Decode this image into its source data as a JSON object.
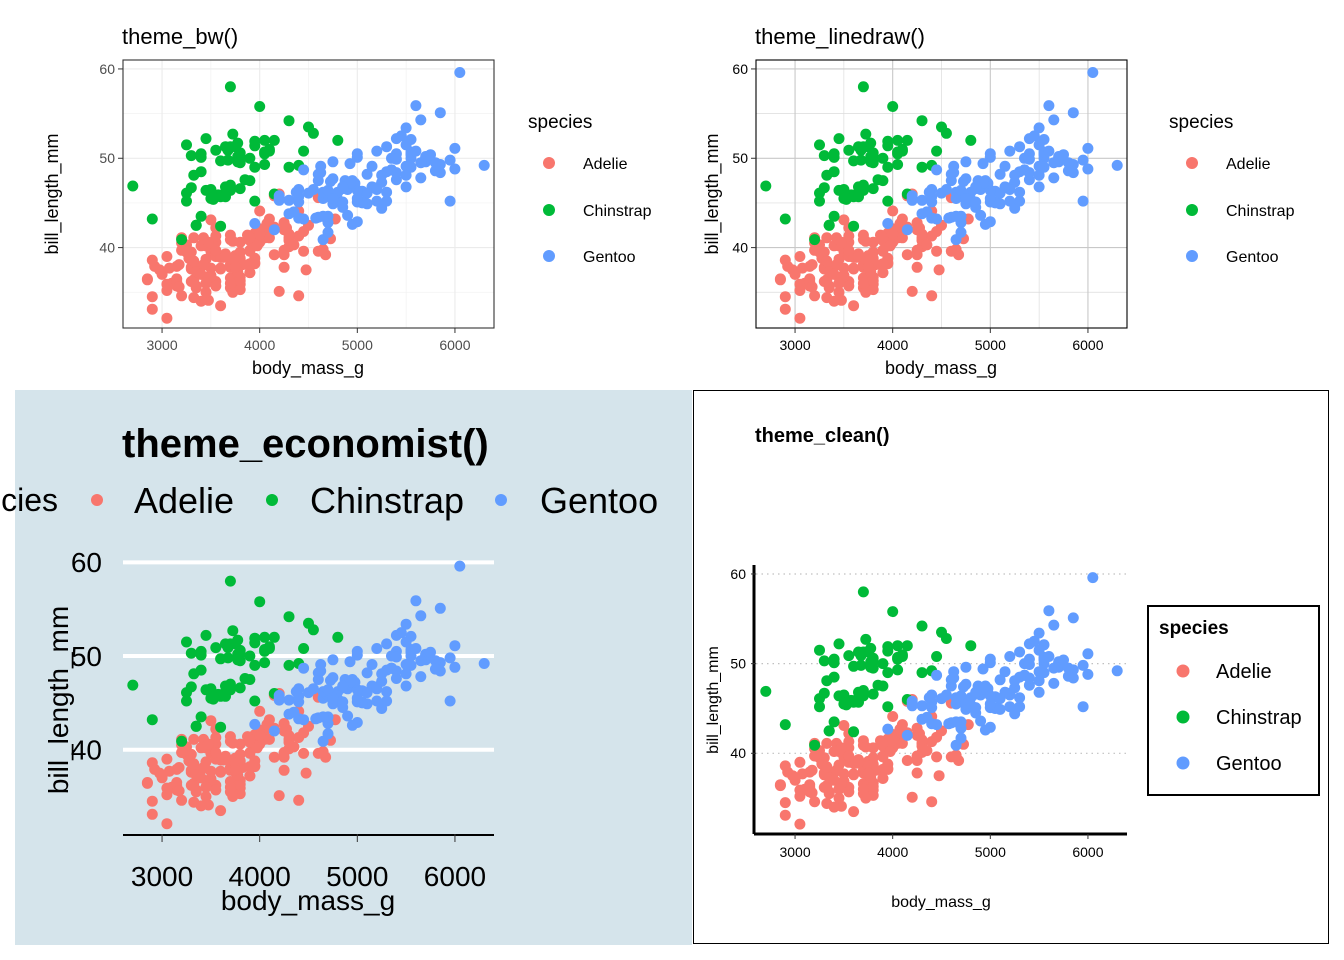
{
  "chart_data": [
    {
      "type": "scatter",
      "theme": "bw",
      "title": "theme_bw()",
      "xlabel": "body_mass_g",
      "ylabel": "bill_length_mm",
      "xlim": [
        2600,
        6400
      ],
      "ylim": [
        31,
        61
      ],
      "xticks": [
        "3000",
        "4000",
        "5000",
        "6000"
      ],
      "yticks": [
        "40",
        "50",
        "60"
      ],
      "grid": true,
      "legend_position": "right",
      "legend_title": "species",
      "series": [
        {
          "name": "Adelie",
          "color": "#F8766D"
        },
        {
          "name": "Chinstrap",
          "color": "#00BA38"
        },
        {
          "name": "Gentoo",
          "color": "#619CFF"
        }
      ]
    },
    {
      "type": "scatter",
      "theme": "linedraw",
      "title": "theme_linedraw()",
      "xlabel": "body_mass_g",
      "ylabel": "bill_length_mm",
      "xlim": [
        2600,
        6400
      ],
      "ylim": [
        31,
        61
      ],
      "xticks": [
        "3000",
        "4000",
        "5000",
        "6000"
      ],
      "yticks": [
        "40",
        "50",
        "60"
      ],
      "grid": true,
      "legend_position": "right",
      "legend_title": "species",
      "series": [
        {
          "name": "Adelie",
          "color": "#F8766D"
        },
        {
          "name": "Chinstrap",
          "color": "#00BA38"
        },
        {
          "name": "Gentoo",
          "color": "#619CFF"
        }
      ]
    },
    {
      "type": "scatter",
      "theme": "economist",
      "title": "theme_economist()",
      "xlabel": "body_mass_g",
      "ylabel": "bill_length_mm",
      "xlim": [
        2600,
        6400
      ],
      "ylim": [
        31,
        61
      ],
      "xticks": [
        "3000",
        "4000",
        "5000",
        "6000"
      ],
      "yticks": [
        "40",
        "50",
        "60"
      ],
      "grid": true,
      "legend_position": "top",
      "legend_title": "species",
      "background": "#D5E4EB",
      "series": [
        {
          "name": "Adelie",
          "color": "#F8766D"
        },
        {
          "name": "Chinstrap",
          "color": "#00BA38"
        },
        {
          "name": "Gentoo",
          "color": "#619CFF"
        }
      ]
    },
    {
      "type": "scatter",
      "theme": "clean",
      "title": "theme_clean()",
      "xlabel": "body_mass_g",
      "ylabel": "bill_length_mm",
      "xlim": [
        2600,
        6400
      ],
      "ylim": [
        31,
        61
      ],
      "xticks": [
        "3000",
        "4000",
        "5000",
        "6000"
      ],
      "yticks": [
        "40",
        "50",
        "60"
      ],
      "grid": "horizontal dotted",
      "legend_position": "right",
      "legend_title": "species",
      "series": [
        {
          "name": "Adelie",
          "color": "#F8766D"
        },
        {
          "name": "Chinstrap",
          "color": "#00BA38"
        },
        {
          "name": "Gentoo",
          "color": "#619CFF"
        }
      ]
    }
  ],
  "points": {
    "Adelie": [
      [
        3750,
        39.1
      ],
      [
        3800,
        39.5
      ],
      [
        3250,
        40.3
      ],
      [
        3450,
        36.7
      ],
      [
        3650,
        39.3
      ],
      [
        3625,
        38.9
      ],
      [
        4675,
        39.2
      ],
      [
        3475,
        34.1
      ],
      [
        4250,
        42.0
      ],
      [
        3300,
        37.8
      ],
      [
        3700,
        37.8
      ],
      [
        3200,
        41.1
      ],
      [
        3800,
        38.6
      ],
      [
        4400,
        34.6
      ],
      [
        3700,
        36.6
      ],
      [
        3450,
        38.7
      ],
      [
        4500,
        42.5
      ],
      [
        3325,
        34.4
      ],
      [
        4200,
        46.0
      ],
      [
        3400,
        37.8
      ],
      [
        3600,
        37.7
      ],
      [
        3800,
        35.9
      ],
      [
        3950,
        38.2
      ],
      [
        3800,
        38.8
      ],
      [
        3800,
        35.3
      ],
      [
        3550,
        40.6
      ],
      [
        3200,
        40.5
      ],
      [
        3150,
        37.9
      ],
      [
        3950,
        40.5
      ],
      [
        3250,
        39.5
      ],
      [
        3900,
        37.2
      ],
      [
        3300,
        39.5
      ],
      [
        3900,
        40.9
      ],
      [
        3325,
        36.4
      ],
      [
        4150,
        39.2
      ],
      [
        3950,
        38.8
      ],
      [
        3550,
        42.2
      ],
      [
        3300,
        37.6
      ],
      [
        4650,
        39.8
      ],
      [
        3150,
        36.5
      ],
      [
        3900,
        40.8
      ],
      [
        3100,
        36.0
      ],
      [
        4400,
        44.1
      ],
      [
        3000,
        37.0
      ],
      [
        4600,
        39.6
      ],
      [
        3425,
        41.1
      ],
      [
        2975,
        37.5
      ],
      [
        3450,
        36.0
      ],
      [
        4150,
        42.3
      ],
      [
        3500,
        39.6
      ],
      [
        4300,
        40.1
      ],
      [
        3450,
        35.0
      ],
      [
        4050,
        42.0
      ],
      [
        2900,
        34.5
      ],
      [
        3700,
        41.4
      ],
      [
        3550,
        39.0
      ],
      [
        3800,
        40.6
      ],
      [
        2850,
        36.5
      ],
      [
        3750,
        37.6
      ],
      [
        3150,
        35.7
      ],
      [
        4400,
        41.3
      ],
      [
        3600,
        37.6
      ],
      [
        4050,
        41.1
      ],
      [
        2850,
        36.4
      ],
      [
        3950,
        41.6
      ],
      [
        3350,
        35.5
      ],
      [
        4100,
        41.1
      ],
      [
        3050,
        35.9
      ],
      [
        4450,
        41.8
      ],
      [
        3600,
        33.5
      ],
      [
        3900,
        39.7
      ],
      [
        3550,
        39.6
      ],
      [
        4150,
        45.8
      ],
      [
        3700,
        35.5
      ],
      [
        4250,
        42.8
      ],
      [
        3700,
        40.9
      ],
      [
        3900,
        37.2
      ],
      [
        3550,
        36.2
      ],
      [
        4000,
        42.1
      ],
      [
        3200,
        34.6
      ],
      [
        4700,
        42.9
      ],
      [
        3800,
        36.7
      ],
      [
        4200,
        35.1
      ],
      [
        3350,
        37.3
      ],
      [
        3550,
        41.3
      ],
      [
        3800,
        36.3
      ],
      [
        3500,
        36.9
      ],
      [
        3950,
        38.3
      ],
      [
        3600,
        38.9
      ],
      [
        3550,
        35.7
      ],
      [
        4300,
        41.1
      ],
      [
        3400,
        34.0
      ],
      [
        4450,
        39.6
      ],
      [
        3300,
        36.2
      ],
      [
        4300,
        40.8
      ],
      [
        3700,
        38.1
      ],
      [
        4350,
        40.3
      ],
      [
        2900,
        33.1
      ],
      [
        4100,
        43.2
      ],
      [
        3725,
        35.0
      ],
      [
        4725,
        41.0
      ],
      [
        3075,
        37.7
      ],
      [
        4250,
        37.8
      ],
      [
        2925,
        37.9
      ],
      [
        3550,
        39.7
      ],
      [
        3750,
        38.6
      ],
      [
        3900,
        38.2
      ],
      [
        3175,
        38.1
      ],
      [
        4775,
        43.2
      ],
      [
        3825,
        38.1
      ],
      [
        4600,
        45.6
      ],
      [
        3200,
        39.7
      ],
      [
        4275,
        42.2
      ],
      [
        3900,
        39.6
      ],
      [
        4075,
        42.7
      ],
      [
        2900,
        38.6
      ],
      [
        3775,
        37.3
      ],
      [
        3350,
        35.7
      ],
      [
        3325,
        41.1
      ],
      [
        3150,
        36.2
      ],
      [
        3500,
        37.7
      ],
      [
        3450,
        40.2
      ],
      [
        3875,
        41.4
      ],
      [
        3050,
        35.2
      ],
      [
        4000,
        40.6
      ],
      [
        3275,
        38.8
      ],
      [
        4300,
        41.5
      ],
      [
        3050,
        39.0
      ],
      [
        4000,
        44.1
      ],
      [
        3325,
        38.5
      ],
      [
        3500,
        43.1
      ],
      [
        3500,
        36.8
      ],
      [
        4475,
        37.5
      ],
      [
        3425,
        38.1
      ],
      [
        3900,
        41.1
      ],
      [
        3175,
        35.6
      ],
      [
        3975,
        40.2
      ],
      [
        3400,
        37.0
      ],
      [
        4250,
        39.7
      ],
      [
        3400,
        40.2
      ],
      [
        3475,
        40.6
      ],
      [
        3050,
        32.1
      ],
      [
        3725,
        40.7
      ],
      [
        3000,
        37.3
      ],
      [
        3650,
        39.0
      ],
      [
        4250,
        39.2
      ],
      [
        3475,
        36.6
      ],
      [
        3450,
        36.0
      ],
      [
        3750,
        37.8
      ],
      [
        3700,
        36.0
      ],
      [
        4000,
        41.5
      ]
    ],
    "Chinstrap": [
      [
        3500,
        46.5
      ],
      [
        3900,
        50.0
      ],
      [
        3650,
        51.3
      ],
      [
        3525,
        45.4
      ],
      [
        3725,
        52.7
      ],
      [
        3950,
        45.2
      ],
      [
        3250,
        46.1
      ],
      [
        3750,
        51.3
      ],
      [
        4150,
        46.0
      ],
      [
        3700,
        51.3
      ],
      [
        3800,
        46.6
      ],
      [
        3775,
        51.7
      ],
      [
        3700,
        47.0
      ],
      [
        4050,
        52.0
      ],
      [
        3575,
        45.9
      ],
      [
        4050,
        50.5
      ],
      [
        3300,
        50.3
      ],
      [
        3700,
        58.0
      ],
      [
        3450,
        46.4
      ],
      [
        4400,
        49.2
      ],
      [
        3600,
        42.4
      ],
      [
        3400,
        48.5
      ],
      [
        2900,
        43.2
      ],
      [
        3800,
        50.6
      ],
      [
        3300,
        46.7
      ],
      [
        4150,
        52.0
      ],
      [
        3400,
        50.5
      ],
      [
        3800,
        49.5
      ],
      [
        3700,
        46.4
      ],
      [
        4550,
        52.8
      ],
      [
        3200,
        40.9
      ],
      [
        4300,
        54.2
      ],
      [
        3350,
        42.5
      ],
      [
        4100,
        51.0
      ],
      [
        3600,
        49.7
      ],
      [
        3900,
        47.5
      ],
      [
        3850,
        47.6
      ],
      [
        4800,
        52.0
      ],
      [
        2700,
        46.9
      ],
      [
        4500,
        53.5
      ],
      [
        3950,
        49.0
      ],
      [
        3650,
        46.2
      ],
      [
        3550,
        50.9
      ],
      [
        3500,
        45.5
      ],
      [
        3675,
        50.9
      ],
      [
        4450,
        50.8
      ],
      [
        3400,
        50.1
      ],
      [
        4300,
        49.0
      ],
      [
        3250,
        51.5
      ],
      [
        3675,
        49.8
      ],
      [
        3325,
        48.1
      ],
      [
        3950,
        51.4
      ],
      [
        3600,
        45.7
      ],
      [
        4050,
        50.7
      ],
      [
        3350,
        42.5
      ],
      [
        3450,
        52.2
      ],
      [
        3250,
        45.2
      ],
      [
        4050,
        49.3
      ],
      [
        3800,
        50.2
      ],
      [
        3525,
        45.6
      ],
      [
        3950,
        51.9
      ],
      [
        3650,
        46.8
      ],
      [
        3650,
        45.7
      ],
      [
        4000,
        55.8
      ],
      [
        3400,
        43.5
      ],
      [
        3775,
        49.6
      ],
      [
        4100,
        50.8
      ],
      [
        3775,
        50.2
      ]
    ],
    "Gentoo": [
      [
        4500,
        46.1
      ],
      [
        5700,
        50.0
      ],
      [
        4450,
        48.7
      ],
      [
        5700,
        50.0
      ],
      [
        5400,
        47.6
      ],
      [
        4550,
        46.5
      ],
      [
        4800,
        45.4
      ],
      [
        5200,
        46.7
      ],
      [
        4400,
        43.3
      ],
      [
        5150,
        46.8
      ],
      [
        4650,
        40.9
      ],
      [
        5550,
        49.0
      ],
      [
        4650,
        45.5
      ],
      [
        5850,
        48.4
      ],
      [
        4200,
        45.8
      ],
      [
        5850,
        49.3
      ],
      [
        4150,
        42.0
      ],
      [
        6300,
        49.2
      ],
      [
        4800,
        46.2
      ],
      [
        5350,
        48.7
      ],
      [
        5700,
        50.2
      ],
      [
        5000,
        45.1
      ],
      [
        4400,
        46.5
      ],
      [
        5050,
        46.3
      ],
      [
        5000,
        42.9
      ],
      [
        5100,
        46.1
      ],
      [
        5650,
        47.8
      ],
      [
        4600,
        48.2
      ],
      [
        5550,
        50.0
      ],
      [
        5250,
        47.3
      ],
      [
        4700,
        42.8
      ],
      [
        5050,
        45.1
      ],
      [
        6050,
        59.6
      ],
      [
        5150,
        49.1
      ],
      [
        5400,
        48.4
      ],
      [
        4950,
        42.6
      ],
      [
        5250,
        44.4
      ],
      [
        4350,
        44.0
      ],
      [
        5350,
        48.7
      ],
      [
        3950,
        42.7
      ],
      [
        5700,
        49.6
      ],
      [
        4300,
        45.3
      ],
      [
        4750,
        49.6
      ],
      [
        5550,
        50.5
      ],
      [
        4900,
        43.6
      ],
      [
        4200,
        45.5
      ],
      [
        5400,
        50.5
      ],
      [
        5100,
        44.9
      ],
      [
        5300,
        45.2
      ],
      [
        4850,
        46.6
      ],
      [
        5300,
        48.5
      ],
      [
        4400,
        45.1
      ],
      [
        5000,
        50.1
      ],
      [
        4900,
        46.5
      ],
      [
        5050,
        45.0
      ],
      [
        4300,
        43.8
      ],
      [
        5000,
        45.5
      ],
      [
        4450,
        43.2
      ],
      [
        5550,
        50.4
      ],
      [
        4200,
        45.3
      ],
      [
        5300,
        46.2
      ],
      [
        4400,
        45.7
      ],
      [
        5650,
        54.3
      ],
      [
        4700,
        45.8
      ],
      [
        5700,
        49.8
      ],
      [
        4650,
        46.2
      ],
      [
        5800,
        49.5
      ],
      [
        4700,
        43.5
      ],
      [
        5550,
        50.7
      ],
      [
        4750,
        47.7
      ],
      [
        5000,
        46.4
      ],
      [
        5100,
        48.2
      ],
      [
        5200,
        46.5
      ],
      [
        4700,
        46.4
      ],
      [
        5800,
        48.6
      ],
      [
        4600,
        47.5
      ],
      [
        6000,
        51.1
      ],
      [
        4750,
        45.2
      ],
      [
        5950,
        45.2
      ],
      [
        4625,
        49.1
      ],
      [
        5450,
        52.5
      ],
      [
        4725,
        47.4
      ],
      [
        5350,
        50.0
      ],
      [
        4750,
        44.9
      ],
      [
        5600,
        50.8
      ],
      [
        4600,
        43.4
      ],
      [
        5300,
        51.3
      ],
      [
        4875,
        47.5
      ],
      [
        5550,
        52.1
      ],
      [
        4950,
        47.5
      ],
      [
        5400,
        52.2
      ],
      [
        4750,
        45.5
      ],
      [
        5650,
        49.5
      ],
      [
        4850,
        44.5
      ],
      [
        5200,
        50.8
      ],
      [
        4925,
        49.4
      ],
      [
        4875,
        46.9
      ],
      [
        4625,
        48.4
      ],
      [
        5250,
        48.1
      ],
      [
        4850,
        45.1
      ],
      [
        5600,
        55.9
      ],
      [
        4975,
        47.2
      ],
      [
        5500,
        49.1
      ],
      [
        5500,
        46.8
      ],
      [
        4700,
        41.7
      ],
      [
        5500,
        53.4
      ],
      [
        4575,
        43.3
      ],
      [
        5500,
        48.1
      ],
      [
        5000,
        50.5
      ],
      [
        5950,
        49.8
      ],
      [
        4650,
        43.5
      ],
      [
        5500,
        51.5
      ],
      [
        4375,
        46.2
      ],
      [
        5850,
        55.1
      ],
      [
        6000,
        48.8
      ],
      [
        4925,
        47.2
      ],
      [
        4850,
        46.8
      ],
      [
        5750,
        50.4
      ],
      [
        5200,
        45.2
      ],
      [
        5400,
        49.9
      ]
    ]
  }
}
